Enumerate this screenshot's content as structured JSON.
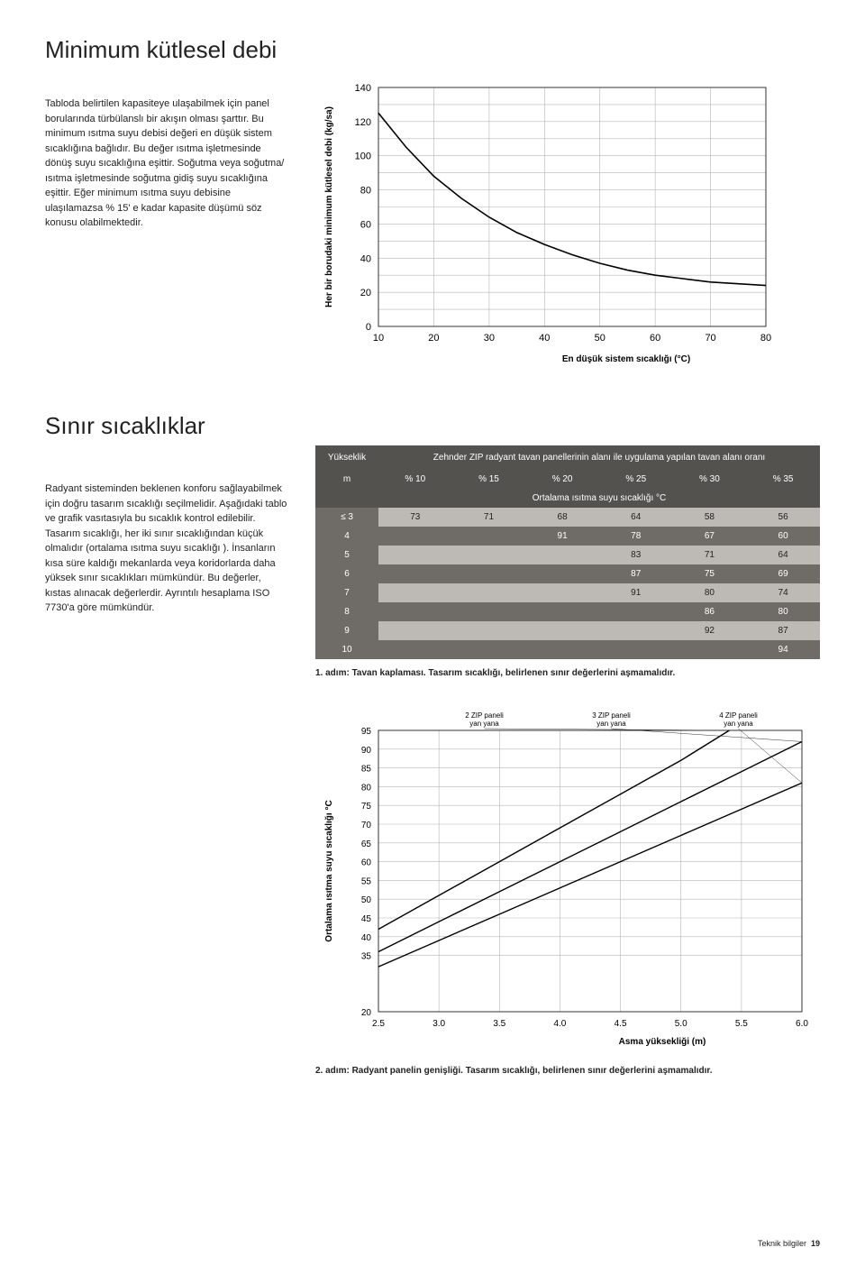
{
  "heading1": "Minimum kütlesel debi",
  "intro_text": "Tabloda belirtilen kapasiteye ulaşabilmek için panel borularında türbülanslı bir akışın olması şarttır. Bu minimum ısıtma suyu debisi değeri en düşük sistem sıcaklığına bağlıdır.\nBu değer ısıtma işletmesinde dönüş suyu sıcaklığına eşittir. Soğutma veya soğutma/ısıtma işletmesinde soğutma gidiş suyu sıcaklığına eşittir. Eğer minimum ısıtma suyu debisine ulaşılamazsa % 15' e kadar kapasite düşümü söz konusu olabilmektedir.",
  "chart1": {
    "type": "line",
    "ylabel": "Her bir borudaki minimum kütlesel debi (kg/sa)",
    "xlabel": "En düşük sistem sıcaklığı (°C)",
    "ymax_label": "140",
    "x_ticks": [
      10,
      20,
      30,
      40,
      50,
      60,
      70,
      80
    ],
    "y_ticks": [
      0,
      20,
      40,
      60,
      80,
      100,
      120
    ],
    "ylim": [
      0,
      140
    ],
    "xlim": [
      10,
      80
    ],
    "line_color": "#000000",
    "grid_color": "#b7b4b0",
    "background": "#ffffff",
    "points": [
      [
        10,
        125
      ],
      [
        15,
        105
      ],
      [
        20,
        88
      ],
      [
        25,
        75
      ],
      [
        30,
        64
      ],
      [
        35,
        55
      ],
      [
        40,
        48
      ],
      [
        45,
        42
      ],
      [
        50,
        37
      ],
      [
        55,
        33
      ],
      [
        60,
        30
      ],
      [
        65,
        28
      ],
      [
        70,
        26
      ],
      [
        75,
        25
      ],
      [
        80,
        24
      ]
    ]
  },
  "heading2": "Sınır sıcaklıklar",
  "mid_text": "Radyant sisteminden beklenen konforu sağlayabilmek için doğru tasarım sıcaklığı seçilmelidir. Aşağıdaki tablo ve grafik vasıtasıyla bu sıcaklık kontrol edilebilir. Tasarım sıcaklığı, her iki sınır sıcaklığından küçük olmalıdır (ortalama ısıtma suyu sıcaklığı ). İnsanların kısa süre kaldığı mekanlarda veya koridorlarda daha yüksek sınır sıcaklıkları mümkündür.\n\nBu değerler, kıstas alınacak değerlerdir. Ayrıntılı hesaplama ISO 7730'a göre mümkündür.",
  "table": {
    "corner": "Yükseklik",
    "title": "Zehnder ZIP radyant tavan panellerinin alanı ile uygulama yapılan tavan alanı oranı",
    "unit_col": "m",
    "cols": [
      "% 10",
      "% 15",
      "% 20",
      "% 25",
      "% 30",
      "% 35"
    ],
    "subtitle": "Ortalama ısıtma suyu sıcaklığı °C",
    "rows": [
      {
        "h": "≤ 3",
        "v": [
          "73",
          "71",
          "68",
          "64",
          "58",
          "56"
        ]
      },
      {
        "h": "4",
        "v": [
          "",
          "",
          "91",
          "78",
          "67",
          "60"
        ]
      },
      {
        "h": "5",
        "v": [
          "",
          "",
          "",
          "83",
          "71",
          "64"
        ]
      },
      {
        "h": "6",
        "v": [
          "",
          "",
          "",
          "87",
          "75",
          "69"
        ]
      },
      {
        "h": "7",
        "v": [
          "",
          "",
          "",
          "91",
          "80",
          "74"
        ]
      },
      {
        "h": "8",
        "v": [
          "",
          "",
          "",
          "",
          "86",
          "80"
        ]
      },
      {
        "h": "9",
        "v": [
          "",
          "",
          "",
          "",
          "92",
          "87"
        ]
      },
      {
        "h": "10",
        "v": [
          "",
          "",
          "",
          "",
          "",
          "94"
        ]
      }
    ],
    "header_bg": "#54524f",
    "row_odd_bg": "#bdbab5",
    "row_even_bg": "#6f6c68"
  },
  "step1_note": "1. adım: Tavan kaplaması. Tasarım sıcaklığı, belirlenen sınır değerlerini aşmamalıdır.",
  "chart2": {
    "type": "line",
    "ylabel": "Ortalama ısıtma suyu sıcaklığı °C",
    "xlabel": "Asma yüksekliği (m)",
    "x_ticks": [
      "2.5",
      "3.0",
      "3.5",
      "4.0",
      "4.5",
      "5.0",
      "5.5",
      "6.0"
    ],
    "y_ticks": [
      20,
      35,
      40,
      45,
      50,
      55,
      60,
      65,
      70,
      75,
      80,
      85,
      90,
      95
    ],
    "ylim": [
      20,
      95
    ],
    "xlim": [
      2.5,
      6.0
    ],
    "line_color": "#000000",
    "grid_color": "#b7b4b0",
    "series": [
      {
        "label": "2 ZIP paneli yan yana",
        "points": [
          [
            2.5,
            42
          ],
          [
            3.0,
            51
          ],
          [
            3.5,
            60
          ],
          [
            4.0,
            69
          ],
          [
            4.5,
            78
          ],
          [
            5.0,
            87
          ],
          [
            5.4,
            95
          ]
        ]
      },
      {
        "label": "3 ZIP paneli yan yana",
        "points": [
          [
            2.5,
            36
          ],
          [
            3.0,
            44
          ],
          [
            3.5,
            52
          ],
          [
            4.0,
            60
          ],
          [
            4.5,
            68
          ],
          [
            5.0,
            76
          ],
          [
            5.5,
            84
          ],
          [
            6.0,
            92
          ]
        ]
      },
      {
        "label": "4 ZIP paneli yan yana",
        "points": [
          [
            2.5,
            32
          ],
          [
            3.0,
            39
          ],
          [
            3.5,
            46
          ],
          [
            4.0,
            53
          ],
          [
            4.5,
            60
          ],
          [
            5.0,
            67
          ],
          [
            5.5,
            74
          ],
          [
            6.0,
            81
          ]
        ]
      }
    ]
  },
  "step2_note": "2. adım: Radyant panelin genişliği. Tasarım sıcaklığı, belirlenen sınır değerlerini aşmamalıdır.",
  "footer_label": "Teknik bilgiler",
  "footer_page": "19"
}
